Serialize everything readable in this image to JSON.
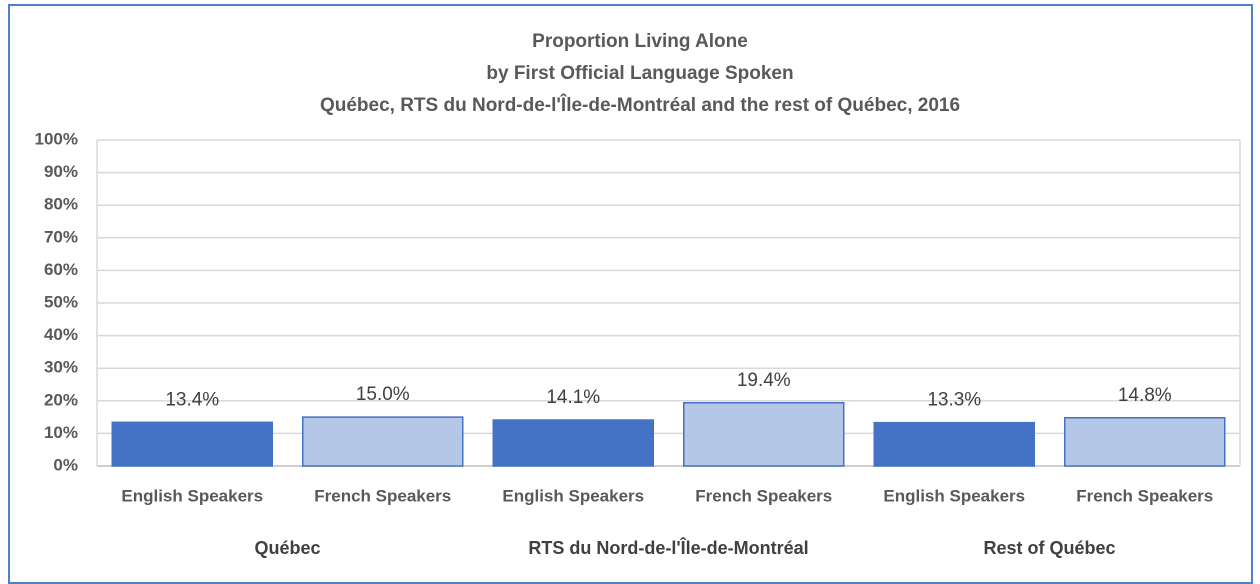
{
  "chart_data": {
    "type": "bar",
    "title": [
      "Proportion Living Alone",
      "by First Official Language Spoken",
      "Québec, RTS du Nord-de-l'Île-de-Montréal and the rest of Québec, 2016"
    ],
    "categories": [
      "English Speakers",
      "French Speakers",
      "English Speakers",
      "French Speakers",
      "English Speakers",
      "French Speakers"
    ],
    "groups": [
      "Québec",
      "RTS du Nord-de-l'Île-de-Montréal",
      "Rest of Québec"
    ],
    "values": [
      13.4,
      15.0,
      14.1,
      19.4,
      13.3,
      14.8
    ],
    "value_labels": [
      "13.4%",
      "15.0%",
      "14.1%",
      "19.4%",
      "13.3%",
      "14.8%"
    ],
    "colors": [
      "#4472c4",
      "#b4c7e7",
      "#4472c4",
      "#b4c7e7",
      "#4472c4",
      "#b4c7e7"
    ],
    "ylim": [
      0,
      100
    ],
    "yticks": [
      {
        "value": 0,
        "label": "0%"
      },
      {
        "value": 10,
        "label": "10%"
      },
      {
        "value": 20,
        "label": "20%"
      },
      {
        "value": 30,
        "label": "30%"
      },
      {
        "value": 40,
        "label": "40%"
      },
      {
        "value": 50,
        "label": "50%"
      },
      {
        "value": 60,
        "label": "60%"
      },
      {
        "value": 70,
        "label": "70%"
      },
      {
        "value": 80,
        "label": "80%"
      },
      {
        "value": 90,
        "label": "90%"
      },
      {
        "value": 100,
        "label": "100%"
      }
    ],
    "grid": true
  }
}
